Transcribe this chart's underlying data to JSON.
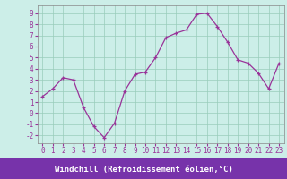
{
  "x": [
    0,
    1,
    2,
    3,
    4,
    5,
    6,
    7,
    8,
    9,
    10,
    11,
    12,
    13,
    14,
    15,
    16,
    17,
    18,
    19,
    20,
    21,
    22,
    23
  ],
  "y": [
    1.5,
    2.2,
    3.2,
    3.0,
    0.5,
    -1.2,
    -2.2,
    -0.9,
    2.0,
    3.5,
    3.7,
    5.0,
    6.8,
    7.2,
    7.5,
    8.9,
    9.0,
    7.8,
    6.4,
    4.8,
    4.5,
    3.6,
    2.2,
    4.5
  ],
  "xlabel": "Windchill (Refroidissement éolien,°C)",
  "xlim": [
    -0.5,
    23.5
  ],
  "ylim": [
    -2.7,
    9.7
  ],
  "yticks": [
    -2,
    -1,
    0,
    1,
    2,
    3,
    4,
    5,
    6,
    7,
    8,
    9
  ],
  "xticks": [
    0,
    1,
    2,
    3,
    4,
    5,
    6,
    7,
    8,
    9,
    10,
    11,
    12,
    13,
    14,
    15,
    16,
    17,
    18,
    19,
    20,
    21,
    22,
    23
  ],
  "line_color": "#993399",
  "marker_color": "#993399",
  "bg_color": "#cceee8",
  "grid_color": "#99ccbb",
  "xlabel_bar_color": "#7733aa",
  "tick_fontsize": 5.5,
  "xlabel_fontsize": 6.5
}
